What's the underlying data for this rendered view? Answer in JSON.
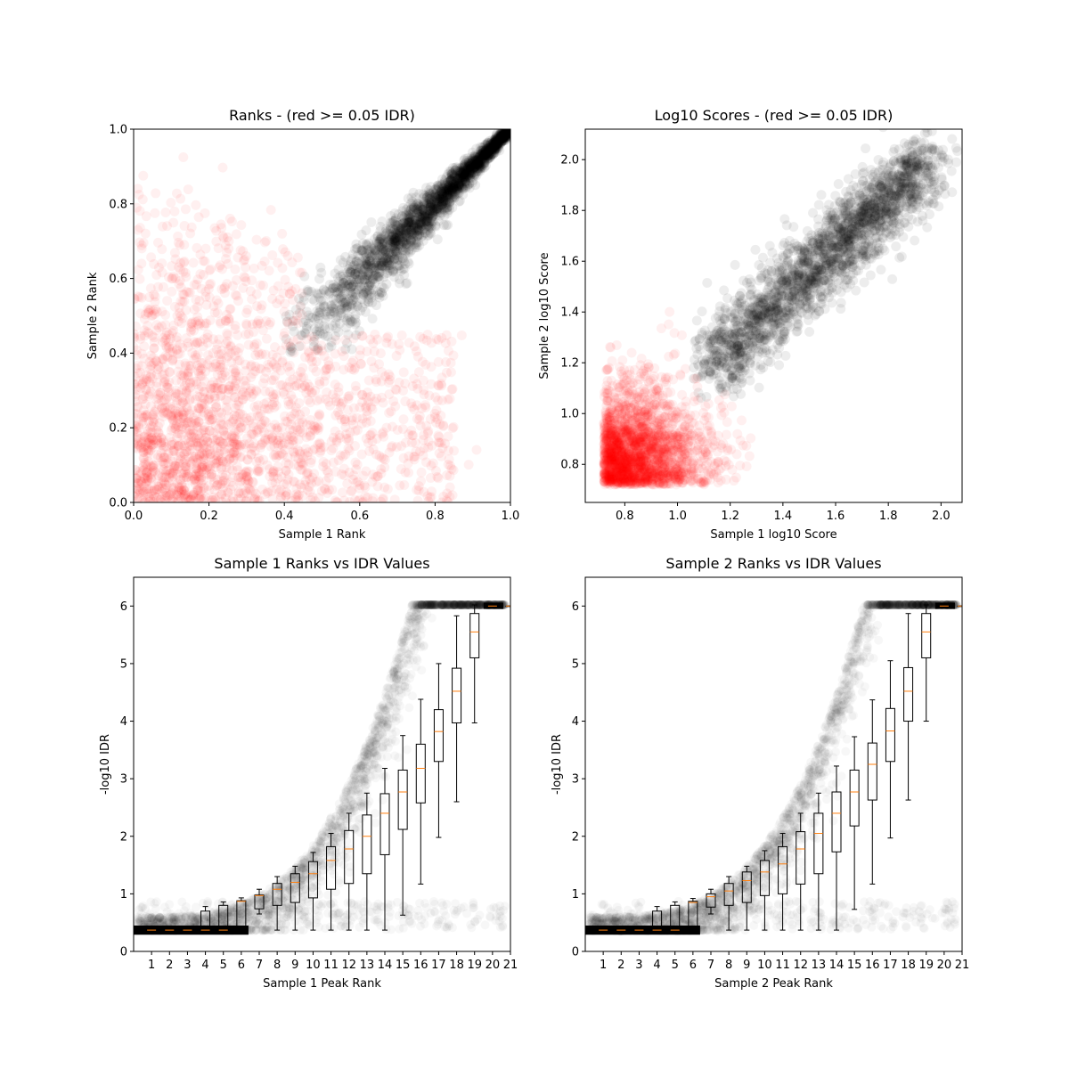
{
  "chart_data": [
    {
      "type": "scatter",
      "title": "Ranks - (red >= 0.05 IDR)",
      "xlabel": "Sample 1 Rank",
      "ylabel": "Sample 2 Rank",
      "xlim": [
        0.0,
        1.0
      ],
      "ylim": [
        0.0,
        1.0
      ],
      "xticks": [
        "0.0",
        "0.2",
        "0.4",
        "0.6",
        "0.8",
        "1.0"
      ],
      "yticks": [
        "0.0",
        "0.2",
        "0.4",
        "0.6",
        "0.8",
        "1.0"
      ],
      "series": [
        {
          "color": "#ff0000",
          "alpha": 0.07,
          "description_values": "low-rank cloud, x 0.0-0.85, y 0.0-0.9"
        },
        {
          "color": "#000000",
          "alpha": 0.07,
          "description_values": "high-rank cloud, x 0.4-1.0, y 0.4-1.0"
        }
      ],
      "red_region": {
        "x": [
          0.0,
          0.85
        ],
        "y": [
          0.0,
          0.9
        ]
      },
      "black_region": {
        "x": [
          0.4,
          1.0
        ],
        "y": [
          0.4,
          1.0
        ]
      }
    },
    {
      "type": "scatter",
      "title": "Log10 Scores - (red >= 0.05 IDR)",
      "xlabel": "Sample 1 log10 Score",
      "ylabel": "Sample 2 log10 Score",
      "xlim": [
        0.65,
        2.08
      ],
      "ylim": [
        0.65,
        2.12
      ],
      "xticks": [
        "0.8",
        "1.0",
        "1.2",
        "1.4",
        "1.6",
        "1.8",
        "2.0"
      ],
      "yticks": [
        "0.8",
        "1.0",
        "1.2",
        "1.4",
        "1.6",
        "1.8",
        "2.0"
      ],
      "series": [
        {
          "color": "#ff0000",
          "alpha": 0.07
        },
        {
          "color": "#000000",
          "alpha": 0.07
        }
      ],
      "red_region": {
        "x": [
          0.72,
          1.5
        ],
        "y": [
          0.72,
          1.5
        ]
      },
      "black_region": {
        "x": [
          1.05,
          2.0
        ],
        "y": [
          1.05,
          2.05
        ]
      }
    },
    {
      "type": "box",
      "title": "Sample 1 Ranks vs IDR Values",
      "xlabel": "Sample 1 Peak Rank",
      "ylabel": "-log10 IDR",
      "xlim": [
        0,
        21
      ],
      "ylim": [
        0,
        6.5
      ],
      "xticks": [
        "1",
        "2",
        "3",
        "4",
        "5",
        "6",
        "7",
        "8",
        "9",
        "10",
        "11",
        "12",
        "13",
        "14",
        "15",
        "16",
        "17",
        "18",
        "19",
        "20",
        "21"
      ],
      "yticks": [
        "0",
        "1",
        "2",
        "3",
        "4",
        "5",
        "6"
      ],
      "boxes": [
        {
          "pos": 1,
          "q1": 0.37,
          "median": 0.37,
          "q3": 0.37,
          "wlo": 0.37,
          "whi": 0.37
        },
        {
          "pos": 2,
          "q1": 0.37,
          "median": 0.37,
          "q3": 0.37,
          "wlo": 0.37,
          "whi": 0.37
        },
        {
          "pos": 3,
          "q1": 0.37,
          "median": 0.37,
          "q3": 0.37,
          "wlo": 0.37,
          "whi": 0.37
        },
        {
          "pos": 4,
          "q1": 0.37,
          "median": 0.37,
          "q3": 0.7,
          "wlo": 0.37,
          "whi": 0.78
        },
        {
          "pos": 5,
          "q1": 0.37,
          "median": 0.37,
          "q3": 0.8,
          "wlo": 0.37,
          "whi": 0.86
        },
        {
          "pos": 6,
          "q1": 0.37,
          "median": 0.87,
          "q3": 0.88,
          "wlo": 0.37,
          "whi": 0.93
        },
        {
          "pos": 7,
          "q1": 0.74,
          "median": 0.97,
          "q3": 0.98,
          "wlo": 0.65,
          "whi": 1.08
        },
        {
          "pos": 8,
          "q1": 0.8,
          "median": 1.08,
          "q3": 1.18,
          "wlo": 0.37,
          "whi": 1.3
        },
        {
          "pos": 9,
          "q1": 0.85,
          "median": 1.2,
          "q3": 1.35,
          "wlo": 0.37,
          "whi": 1.48
        },
        {
          "pos": 10,
          "q1": 0.93,
          "median": 1.35,
          "q3": 1.56,
          "wlo": 0.37,
          "whi": 1.72
        },
        {
          "pos": 11,
          "q1": 1.08,
          "median": 1.58,
          "q3": 1.82,
          "wlo": 0.37,
          "whi": 2.05
        },
        {
          "pos": 12,
          "q1": 1.18,
          "median": 1.78,
          "q3": 2.1,
          "wlo": 0.37,
          "whi": 2.4
        },
        {
          "pos": 13,
          "q1": 1.35,
          "median": 2.0,
          "q3": 2.37,
          "wlo": 0.37,
          "whi": 2.75
        },
        {
          "pos": 14,
          "q1": 1.68,
          "median": 2.4,
          "q3": 2.74,
          "wlo": 0.37,
          "whi": 3.18
        },
        {
          "pos": 15,
          "q1": 2.12,
          "median": 2.77,
          "q3": 3.15,
          "wlo": 0.63,
          "whi": 3.75
        },
        {
          "pos": 16,
          "q1": 2.58,
          "median": 3.18,
          "q3": 3.6,
          "wlo": 1.17,
          "whi": 4.38
        },
        {
          "pos": 17,
          "q1": 3.3,
          "median": 3.82,
          "q3": 4.2,
          "wlo": 1.98,
          "whi": 5.0
        },
        {
          "pos": 18,
          "q1": 3.97,
          "median": 4.52,
          "q3": 4.92,
          "wlo": 2.6,
          "whi": 5.83
        },
        {
          "pos": 19,
          "q1": 5.1,
          "median": 5.55,
          "q3": 5.87,
          "wlo": 3.97,
          "whi": 6.02
        },
        {
          "pos": 20,
          "q1": 6.0,
          "median": 6.0,
          "q3": 6.0,
          "wlo": 6.0,
          "whi": 6.0
        },
        {
          "pos": 21,
          "q1": 6.0,
          "median": 6.0,
          "q3": 6.0,
          "wlo": 6.0,
          "whi": 6.0
        }
      ],
      "box_color": "#000000",
      "median_color": "#ff7f0e",
      "scatter_color": "#000000"
    },
    {
      "type": "box",
      "title": "Sample 2 Ranks vs IDR Values",
      "xlabel": "Sample 2 Peak Rank",
      "ylabel": "-log10 IDR",
      "xlim": [
        0,
        21
      ],
      "ylim": [
        0,
        6.5
      ],
      "xticks": [
        "1",
        "2",
        "3",
        "4",
        "5",
        "6",
        "7",
        "8",
        "9",
        "10",
        "11",
        "12",
        "13",
        "14",
        "15",
        "16",
        "17",
        "18",
        "19",
        "20",
        "21"
      ],
      "yticks": [
        "0",
        "1",
        "2",
        "3",
        "4",
        "5",
        "6"
      ],
      "boxes": [
        {
          "pos": 1,
          "q1": 0.37,
          "median": 0.37,
          "q3": 0.37,
          "wlo": 0.37,
          "whi": 0.37
        },
        {
          "pos": 2,
          "q1": 0.37,
          "median": 0.37,
          "q3": 0.37,
          "wlo": 0.37,
          "whi": 0.37
        },
        {
          "pos": 3,
          "q1": 0.37,
          "median": 0.37,
          "q3": 0.37,
          "wlo": 0.37,
          "whi": 0.37
        },
        {
          "pos": 4,
          "q1": 0.37,
          "median": 0.37,
          "q3": 0.7,
          "wlo": 0.37,
          "whi": 0.78
        },
        {
          "pos": 5,
          "q1": 0.37,
          "median": 0.37,
          "q3": 0.8,
          "wlo": 0.37,
          "whi": 0.86
        },
        {
          "pos": 6,
          "q1": 0.37,
          "median": 0.85,
          "q3": 0.87,
          "wlo": 0.37,
          "whi": 0.92
        },
        {
          "pos": 7,
          "q1": 0.77,
          "median": 0.95,
          "q3": 1.0,
          "wlo": 0.65,
          "whi": 1.08
        },
        {
          "pos": 8,
          "q1": 0.8,
          "median": 1.05,
          "q3": 1.18,
          "wlo": 0.37,
          "whi": 1.3
        },
        {
          "pos": 9,
          "q1": 0.85,
          "median": 1.23,
          "q3": 1.38,
          "wlo": 0.37,
          "whi": 1.48
        },
        {
          "pos": 10,
          "q1": 0.97,
          "median": 1.38,
          "q3": 1.58,
          "wlo": 0.37,
          "whi": 1.75
        },
        {
          "pos": 11,
          "q1": 1.0,
          "median": 1.52,
          "q3": 1.82,
          "wlo": 0.37,
          "whi": 2.05
        },
        {
          "pos": 12,
          "q1": 1.17,
          "median": 1.78,
          "q3": 2.08,
          "wlo": 0.37,
          "whi": 2.4
        },
        {
          "pos": 13,
          "q1": 1.35,
          "median": 2.05,
          "q3": 2.4,
          "wlo": 0.37,
          "whi": 2.75
        },
        {
          "pos": 14,
          "q1": 1.73,
          "median": 2.4,
          "q3": 2.77,
          "wlo": 0.37,
          "whi": 3.22
        },
        {
          "pos": 15,
          "q1": 2.18,
          "median": 2.77,
          "q3": 3.15,
          "wlo": 0.73,
          "whi": 3.73
        },
        {
          "pos": 16,
          "q1": 2.63,
          "median": 3.25,
          "q3": 3.62,
          "wlo": 1.17,
          "whi": 4.37
        },
        {
          "pos": 17,
          "q1": 3.3,
          "median": 3.83,
          "q3": 4.22,
          "wlo": 1.97,
          "whi": 5.05
        },
        {
          "pos": 18,
          "q1": 4.0,
          "median": 4.52,
          "q3": 4.93,
          "wlo": 2.63,
          "whi": 5.87
        },
        {
          "pos": 19,
          "q1": 5.1,
          "median": 5.55,
          "q3": 5.87,
          "wlo": 4.0,
          "whi": 6.02
        },
        {
          "pos": 20,
          "q1": 6.0,
          "median": 6.0,
          "q3": 6.0,
          "wlo": 6.0,
          "whi": 6.0
        },
        {
          "pos": 21,
          "q1": 6.0,
          "median": 6.0,
          "q3": 6.0,
          "wlo": 6.0,
          "whi": 6.0
        }
      ],
      "box_color": "#000000",
      "median_color": "#ff7f0e",
      "scatter_color": "#000000"
    }
  ]
}
